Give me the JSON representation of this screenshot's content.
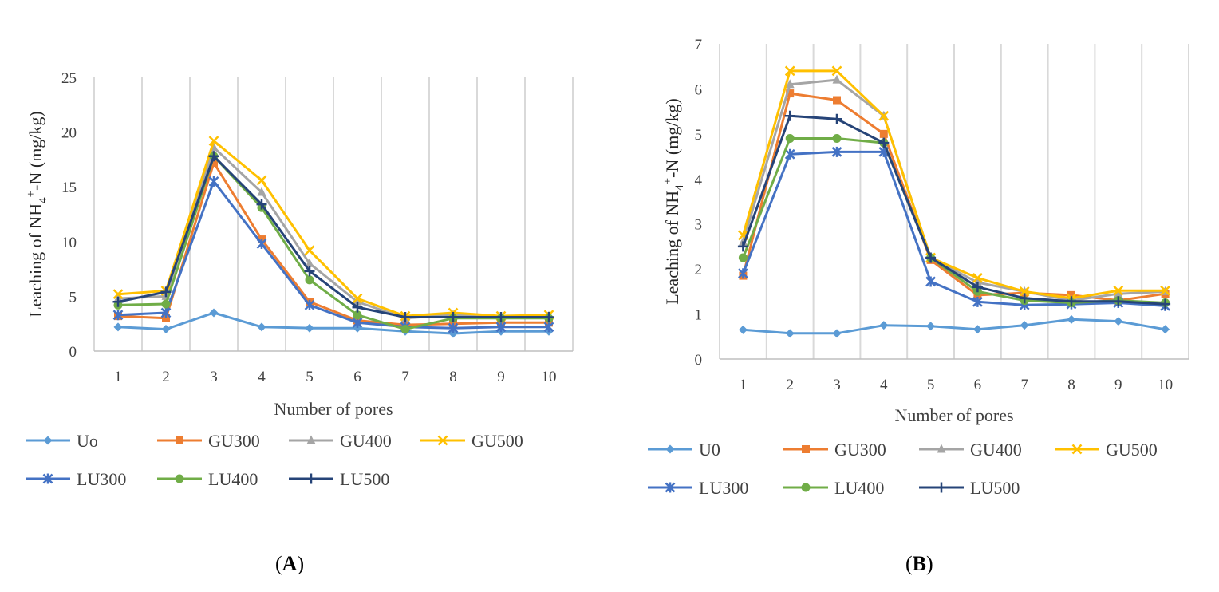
{
  "chart_data": [
    {
      "type": "line",
      "panel": "A",
      "categories": [
        "1",
        "2",
        "3",
        "4",
        "5",
        "6",
        "7",
        "8",
        "9",
        "10"
      ],
      "xlabel": "Number of pores",
      "ylabel_parts": {
        "pre": "Leaching of NH",
        "sub": "4",
        "sup": "+",
        "post": "-N (mg/kg)"
      },
      "ylim": [
        0,
        25
      ],
      "yticks": [
        "0",
        "5",
        "10",
        "15",
        "20",
        "25"
      ],
      "grid": "vertical",
      "legend_placement": "bottom",
      "series": [
        {
          "name": "Uo",
          "color": "#5B9BD5",
          "marker": "diamond",
          "values": [
            2.2,
            2.0,
            3.5,
            2.2,
            2.1,
            2.1,
            1.8,
            1.6,
            1.8,
            1.8
          ]
        },
        {
          "name": "GU300",
          "color": "#ED7D31",
          "marker": "square",
          "values": [
            3.2,
            3.0,
            17.2,
            10.2,
            4.5,
            2.8,
            2.4,
            2.5,
            2.6,
            2.6
          ]
        },
        {
          "name": "GU400",
          "color": "#A5A5A5",
          "marker": "triangle",
          "values": [
            4.8,
            5.0,
            18.6,
            14.5,
            8.0,
            4.5,
            3.0,
            3.3,
            3.1,
            3.2
          ]
        },
        {
          "name": "GU500",
          "color": "#FFC000",
          "marker": "x",
          "values": [
            5.2,
            5.5,
            19.2,
            15.6,
            9.2,
            4.8,
            3.2,
            3.5,
            3.2,
            3.3
          ]
        },
        {
          "name": "LU300",
          "color": "#4472C4",
          "marker": "star",
          "values": [
            3.3,
            3.5,
            15.5,
            9.8,
            4.2,
            2.6,
            2.2,
            2.1,
            2.2,
            2.2
          ]
        },
        {
          "name": "LU400",
          "color": "#70AD47",
          "marker": "circle",
          "values": [
            4.2,
            4.3,
            17.8,
            13.1,
            6.5,
            3.3,
            2.0,
            3.0,
            3.0,
            3.0
          ]
        },
        {
          "name": "LU500",
          "color": "#264478",
          "marker": "plus",
          "values": [
            4.5,
            5.4,
            17.8,
            13.4,
            7.3,
            4.0,
            3.1,
            3.1,
            3.1,
            3.1
          ]
        }
      ]
    },
    {
      "type": "line",
      "panel": "B",
      "categories": [
        "1",
        "2",
        "3",
        "4",
        "5",
        "6",
        "7",
        "8",
        "9",
        "10"
      ],
      "xlabel": "Number of pores",
      "ylabel_parts": {
        "pre": "Leaching of NH",
        "sub": "4",
        "sup": "+",
        "post": "-N (mg/kg)"
      },
      "ylim": [
        0,
        7
      ],
      "yticks": [
        "0",
        "1",
        "2",
        "3",
        "4",
        "5",
        "6",
        "7"
      ],
      "grid": "vertical",
      "legend_placement": "bottom",
      "series": [
        {
          "name": "U0",
          "color": "#5B9BD5",
          "marker": "diamond",
          "values": [
            0.65,
            0.57,
            0.57,
            0.75,
            0.73,
            0.66,
            0.75,
            0.88,
            0.84,
            0.66
          ]
        },
        {
          "name": "GU300",
          "color": "#ED7D31",
          "marker": "square",
          "values": [
            1.85,
            5.9,
            5.75,
            5.0,
            2.2,
            1.42,
            1.47,
            1.42,
            1.3,
            1.45
          ]
        },
        {
          "name": "GU400",
          "color": "#A5A5A5",
          "marker": "triangle",
          "values": [
            2.6,
            6.1,
            6.2,
            5.4,
            2.25,
            1.7,
            1.5,
            1.3,
            1.45,
            1.5
          ]
        },
        {
          "name": "GU500",
          "color": "#FFC000",
          "marker": "x",
          "values": [
            2.75,
            6.4,
            6.4,
            5.4,
            2.25,
            1.8,
            1.5,
            1.35,
            1.52,
            1.52
          ]
        },
        {
          "name": "LU300",
          "color": "#4472C4",
          "marker": "star",
          "values": [
            1.9,
            4.55,
            4.6,
            4.6,
            1.72,
            1.27,
            1.2,
            1.22,
            1.25,
            1.18
          ]
        },
        {
          "name": "LU400",
          "color": "#70AD47",
          "marker": "circle",
          "values": [
            2.25,
            4.9,
            4.9,
            4.8,
            2.25,
            1.5,
            1.3,
            1.25,
            1.3,
            1.25
          ]
        },
        {
          "name": "LU500",
          "color": "#264478",
          "marker": "plus",
          "values": [
            2.5,
            5.4,
            5.33,
            4.8,
            2.25,
            1.6,
            1.35,
            1.28,
            1.28,
            1.22
          ]
        }
      ]
    }
  ],
  "panel_labels": [
    {
      "open": "(",
      "letter": "A",
      "close": ")"
    },
    {
      "open": "(",
      "letter": "B",
      "close": ")"
    }
  ]
}
